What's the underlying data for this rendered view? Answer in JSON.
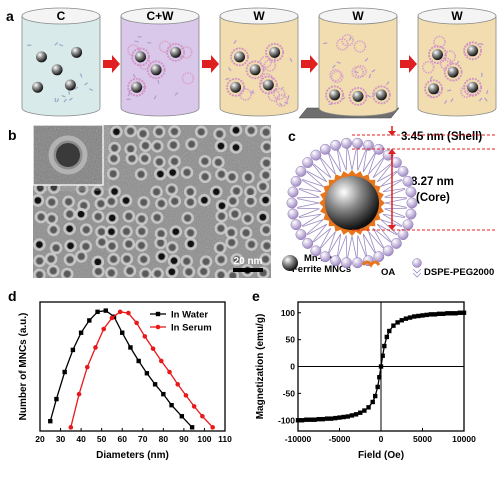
{
  "panels": {
    "a": {
      "label": "a",
      "steps": [
        "C",
        "C+W",
        "W",
        "W",
        "W"
      ],
      "colors": [
        "#d8ebea",
        "#d9c8ea",
        "#f1ddb0",
        "#f1ddb0",
        "#f1ddb0"
      ]
    },
    "b": {
      "label": "b",
      "scale_bar": "20 nm"
    },
    "c": {
      "label": "c",
      "shell_label": "3.45 nm (Shell)",
      "core_label_value": "8.27 nm",
      "core_label_unit": "(Core)",
      "legend_mnc_line1": "Mn-Zn",
      "legend_mnc_line2": "Ferrite MNCs",
      "legend_oa": "OA",
      "legend_peg": "DSPE-PEG2000"
    },
    "d": {
      "label": "d"
    },
    "e": {
      "label": "e"
    }
  },
  "chart_data": [
    {
      "type": "line",
      "panel": "d",
      "xlabel": "Diameters (nm)",
      "ylabel": "Number of MNCs (a.u.)",
      "xlim": [
        20,
        110
      ],
      "ylim": [
        0,
        1.05
      ],
      "xticks": [
        20,
        30,
        40,
        50,
        60,
        70,
        80,
        90,
        100,
        110
      ],
      "legend_position": "top-right",
      "series": [
        {
          "name": "In Water",
          "color": "#000000",
          "marker": "square",
          "x": [
            25,
            28,
            32,
            36,
            40,
            44,
            48,
            52,
            56,
            60,
            64,
            68,
            72,
            76,
            80,
            84,
            89,
            94
          ],
          "y": [
            0.08,
            0.26,
            0.48,
            0.66,
            0.8,
            0.9,
            0.97,
            0.98,
            0.93,
            0.8,
            0.68,
            0.57,
            0.47,
            0.38,
            0.3,
            0.21,
            0.12,
            0.03
          ]
        },
        {
          "name": "In Serum",
          "color": "#e8191b",
          "marker": "circle",
          "x": [
            35,
            39,
            43,
            47,
            51,
            55,
            59,
            63,
            67,
            71,
            75,
            79,
            83,
            87,
            91,
            95,
            99,
            104
          ],
          "y": [
            0.03,
            0.3,
            0.52,
            0.68,
            0.83,
            0.92,
            0.97,
            0.96,
            0.88,
            0.77,
            0.67,
            0.57,
            0.48,
            0.38,
            0.29,
            0.2,
            0.12,
            0.03
          ]
        }
      ]
    },
    {
      "type": "line",
      "panel": "e",
      "xlabel": "Field (Oe)",
      "ylabel": "Magnetization (emu/g)",
      "xlim": [
        -10000,
        10000
      ],
      "ylim": [
        -120,
        120
      ],
      "xticks": [
        -10000,
        -5000,
        0,
        5000,
        10000
      ],
      "yticks": [
        -100,
        -50,
        0,
        50,
        100
      ],
      "grid": false,
      "series": [
        {
          "name": "",
          "color": "#000000",
          "marker": "square",
          "x": [
            -10000,
            -9500,
            -9000,
            -8500,
            -8000,
            -7500,
            -7000,
            -6500,
            -6000,
            -5500,
            -5000,
            -4500,
            -4000,
            -3500,
            -3000,
            -2500,
            -2000,
            -1500,
            -1000,
            -700,
            -400,
            -200,
            0,
            200,
            400,
            700,
            1000,
            1500,
            2000,
            2500,
            3000,
            3500,
            4000,
            4500,
            5000,
            5500,
            6000,
            6500,
            7000,
            7500,
            8000,
            8500,
            9000,
            9500,
            10000
          ],
          "y": [
            -100,
            -100,
            -99,
            -99,
            -99,
            -98,
            -98,
            -97,
            -97,
            -96,
            -95,
            -94,
            -93,
            -91,
            -89,
            -86,
            -82,
            -76,
            -66,
            -55,
            -38,
            -20,
            0,
            20,
            38,
            55,
            66,
            76,
            82,
            86,
            89,
            91,
            93,
            94,
            95,
            96,
            97,
            97,
            98,
            98,
            99,
            99,
            99,
            100,
            100
          ]
        }
      ]
    }
  ]
}
